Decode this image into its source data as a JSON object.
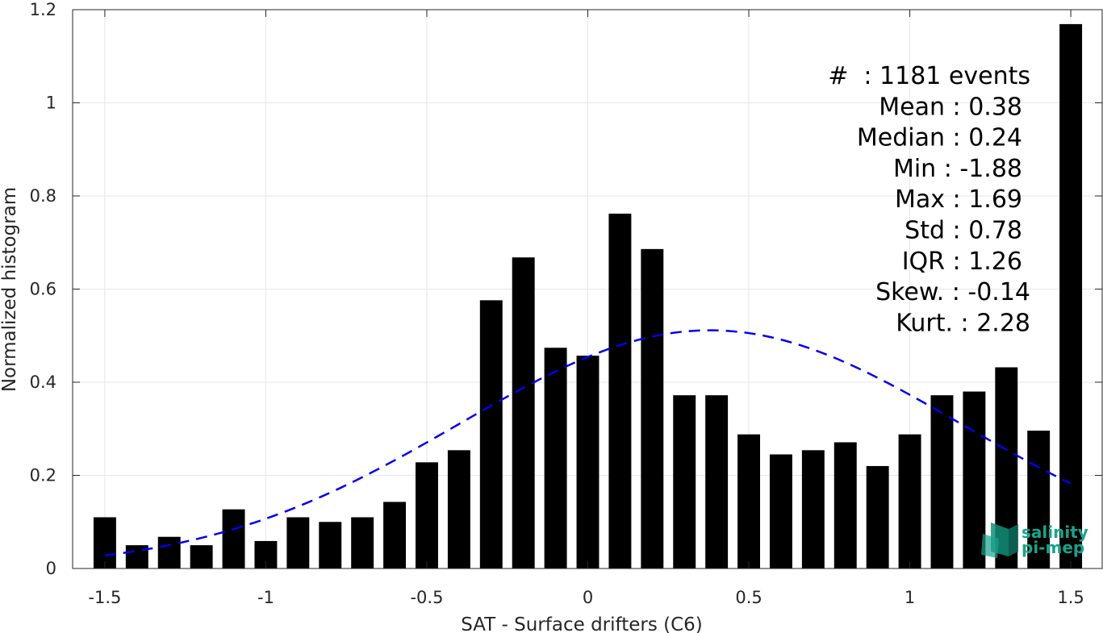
{
  "chart_data": {
    "type": "bar",
    "title": "",
    "xlabel": "SAT - Surface drifters (C6)",
    "ylabel": "Normalized histogram",
    "xlim": [
      -1.6,
      1.6
    ],
    "ylim": [
      0,
      1.2
    ],
    "xticks": [
      -1.5,
      -1,
      -0.5,
      0,
      0.5,
      1,
      1.5
    ],
    "xtick_labels": [
      "-1.5",
      "-1",
      "-0.5",
      "0",
      "0.5",
      "1",
      "1.5"
    ],
    "yticks": [
      0,
      0.2,
      0.4,
      0.6,
      0.8,
      1.0,
      1.2
    ],
    "ytick_labels": [
      "0",
      "0.2",
      "0.4",
      "0.6",
      "0.8",
      "1",
      "1.2"
    ],
    "grid": true,
    "bar_width": 0.07,
    "bar_color": "#000000",
    "series": [
      {
        "x": [
          -1.5,
          -1.4,
          -1.3,
          -1.2,
          -1.1,
          -1.0,
          -0.9,
          -0.8,
          -0.7,
          -0.6,
          -0.5,
          -0.4,
          -0.3,
          -0.2,
          -0.1,
          0.0,
          0.1,
          0.2,
          0.3,
          0.4,
          0.5,
          0.6,
          0.7,
          0.8,
          0.9,
          1.0,
          1.1,
          1.2,
          1.3,
          1.4,
          1.5
        ],
        "values": [
          0.11,
          0.05,
          0.068,
          0.05,
          0.127,
          0.059,
          0.11,
          0.1,
          0.11,
          0.143,
          0.228,
          0.254,
          0.576,
          0.668,
          0.474,
          0.457,
          0.762,
          0.686,
          0.372,
          0.372,
          0.288,
          0.245,
          0.254,
          0.271,
          0.22,
          0.288,
          0.372,
          0.38,
          0.432,
          0.296,
          1.169
        ]
      }
    ],
    "fit_curve": {
      "type": "normal",
      "mean": 0.38,
      "std": 0.78,
      "x_range": [
        -1.5,
        1.5
      ],
      "style": "dashed",
      "color": "#0000ee"
    },
    "stats_lines": [
      "#  : 1181 events",
      "Mean : 0.38",
      "Median : 0.24",
      "Min : -1.88",
      "Max : 1.69",
      "Std : 0.78",
      "IQR : 1.26",
      "Skew. : -0.14",
      "Kurt. : 2.28"
    ]
  },
  "logo": {
    "line1": "salinity",
    "line2": "pi-mep",
    "color": "#1aa38c"
  },
  "colors": {
    "axes": "#262626",
    "grid": "#e6e6e6",
    "curve": "#0000ee"
  }
}
